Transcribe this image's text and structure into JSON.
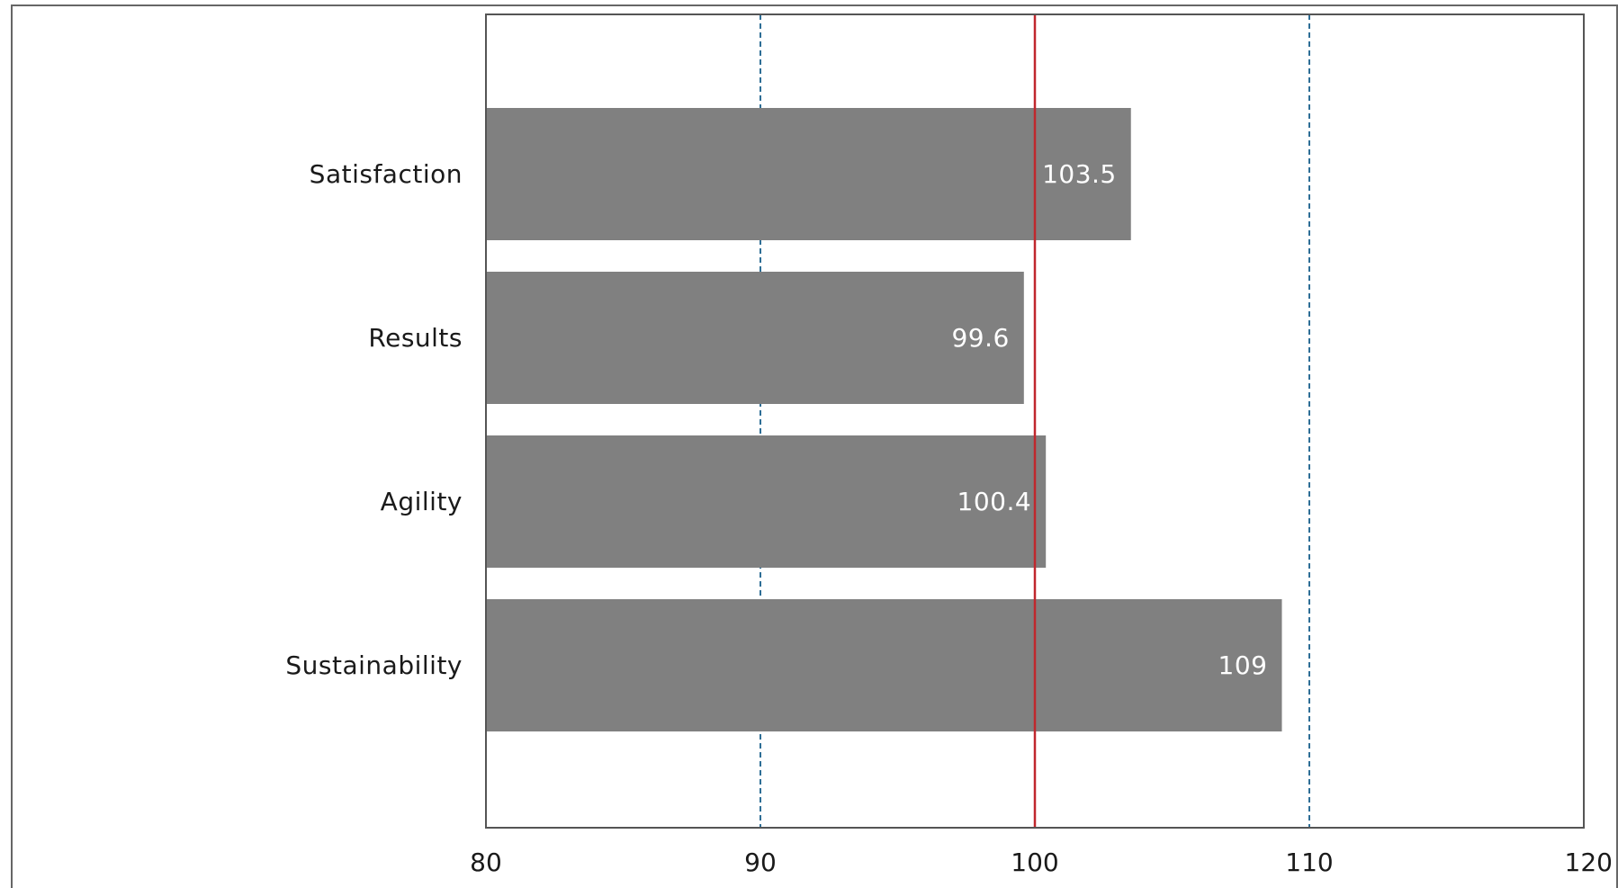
{
  "chart_data": {
    "type": "bar",
    "orientation": "horizontal",
    "categories": [
      "Satisfaction",
      "Results",
      "Agility",
      "Sustainability"
    ],
    "values": [
      103.5,
      99.6,
      100.4,
      109
    ],
    "value_labels": [
      "103.5",
      "99.6",
      "100.4",
      "109"
    ],
    "title": "",
    "xlabel": "",
    "ylabel": "",
    "xlim": [
      80,
      120
    ],
    "xticks": [
      80,
      90,
      100,
      110,
      120
    ],
    "xtick_labels": [
      "80",
      "90",
      "100",
      "110",
      "120"
    ],
    "reference_line": {
      "value": 100,
      "color": "#c0272d"
    },
    "dashed_gridlines": [
      90,
      110
    ],
    "grid": true,
    "legend": "none",
    "colors": {
      "bar": "#808080",
      "reference_line": "#c0272d",
      "gridline": "#2e6e96",
      "axes": "#555555",
      "outer_border": "#666666",
      "label_text": "#1a1a1a",
      "bar_label_text": "#ffffff"
    }
  }
}
